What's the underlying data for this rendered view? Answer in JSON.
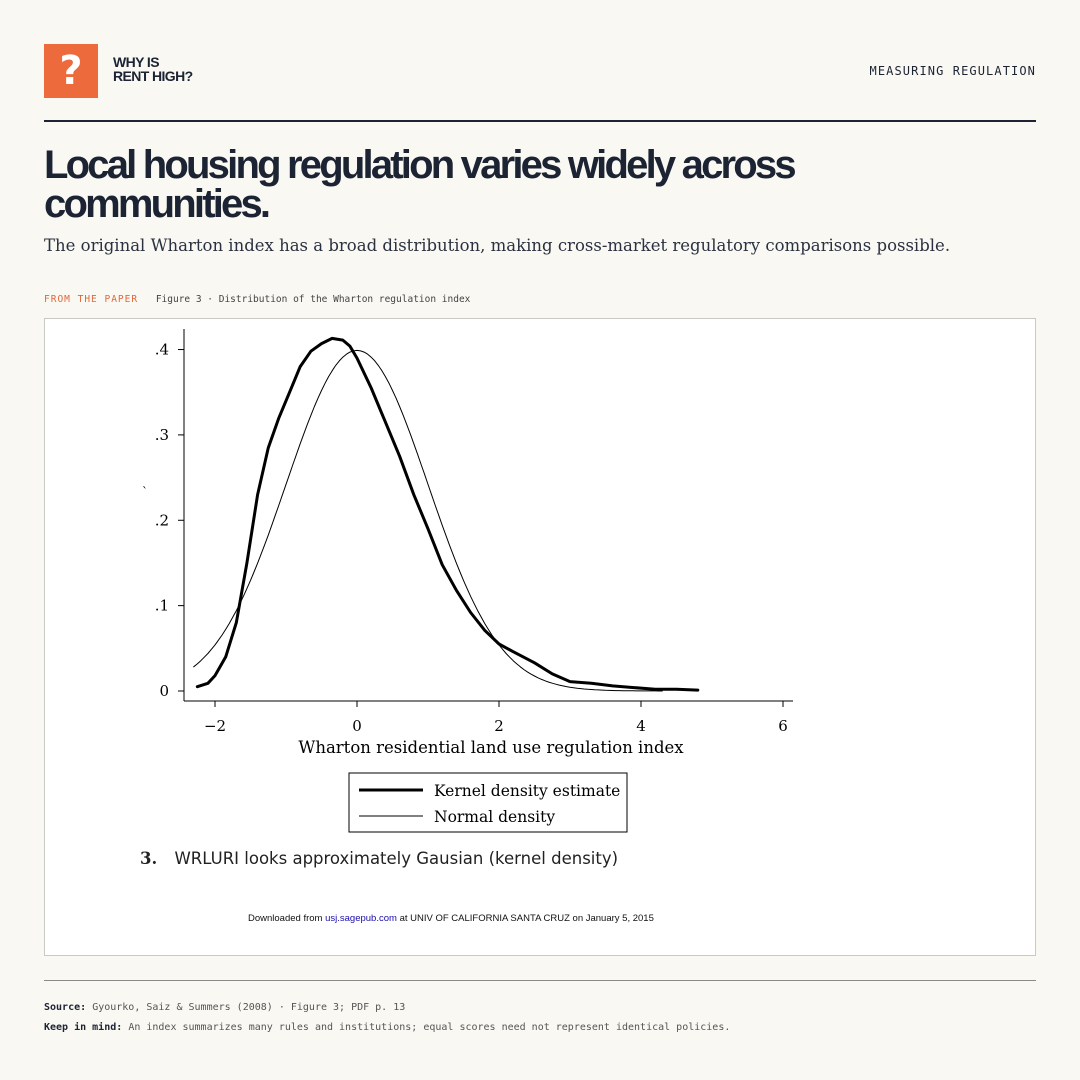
{
  "brand": {
    "logo_glyph": "?",
    "logo_line1": "WHY IS",
    "logo_line2": "RENT HIGH?",
    "accent": "#ec6a3c"
  },
  "header": {
    "section": "MEASURING REGULATION"
  },
  "headline": "Local housing regulation varies widely across communities.",
  "subtitle": "The original Wharton index has a broad distribution, making cross-market regulatory comparisons possible.",
  "figure_label": {
    "tag": "FROM THE PAPER",
    "caption": "Figure 3 · Distribution of the Wharton regulation index"
  },
  "figure": {
    "stray_mark": "`",
    "caption_number": "3.",
    "caption_text": "WRLURI looks approximately Gausian (kernel density)",
    "download_prefix": "Downloaded from ",
    "download_link": "usj.sagepub.com",
    "download_suffix": " at UNIV OF CALIFORNIA SANTA CRUZ on January 5, 2015",
    "link_color": "#1a0dab"
  },
  "chart_data": {
    "type": "line",
    "title": "",
    "xlabel": "Wharton residential land use regulation index",
    "ylabel": "",
    "xlim": [
      -2.4,
      6.1
    ],
    "ylim": [
      0,
      0.42
    ],
    "x_ticks": [
      -2,
      0,
      2,
      4,
      6
    ],
    "x_tick_labels": [
      "−2",
      "0",
      "2",
      "4",
      "6"
    ],
    "y_ticks": [
      0,
      0.1,
      0.2,
      0.3,
      0.4
    ],
    "y_tick_labels": [
      "0",
      ".1",
      ".2",
      ".3",
      ".4"
    ],
    "legend_position": "below",
    "series": [
      {
        "name": "Kernel density estimate",
        "style": "thick",
        "x": [
          -2.25,
          -2.1,
          -2.0,
          -1.85,
          -1.7,
          -1.55,
          -1.4,
          -1.25,
          -1.1,
          -0.95,
          -0.8,
          -0.65,
          -0.5,
          -0.35,
          -0.2,
          -0.1,
          0.0,
          0.2,
          0.4,
          0.6,
          0.8,
          1.0,
          1.2,
          1.4,
          1.6,
          1.8,
          2.0,
          2.2,
          2.5,
          2.75,
          3.0,
          3.3,
          3.6,
          3.9,
          4.2,
          4.5,
          4.8
        ],
        "values": [
          0.005,
          0.009,
          0.018,
          0.04,
          0.08,
          0.15,
          0.23,
          0.285,
          0.32,
          0.35,
          0.38,
          0.398,
          0.407,
          0.413,
          0.411,
          0.404,
          0.39,
          0.355,
          0.315,
          0.275,
          0.23,
          0.19,
          0.148,
          0.118,
          0.092,
          0.071,
          0.055,
          0.046,
          0.033,
          0.02,
          0.011,
          0.009,
          0.006,
          0.004,
          0.002,
          0.002,
          0.001
        ]
      },
      {
        "name": "Normal density",
        "style": "thin",
        "normal": {
          "mean": 0.0,
          "sd": 1.0,
          "from": -2.3,
          "to": 4.3
        }
      }
    ]
  },
  "source": {
    "label": "Source:",
    "text": "Gyourko, Saiz & Summers (2008) · Figure 3; PDF p. 13"
  },
  "note": {
    "label": "Keep in mind:",
    "text": "An index summarizes many rules and institutions; equal scores need not represent identical policies."
  }
}
